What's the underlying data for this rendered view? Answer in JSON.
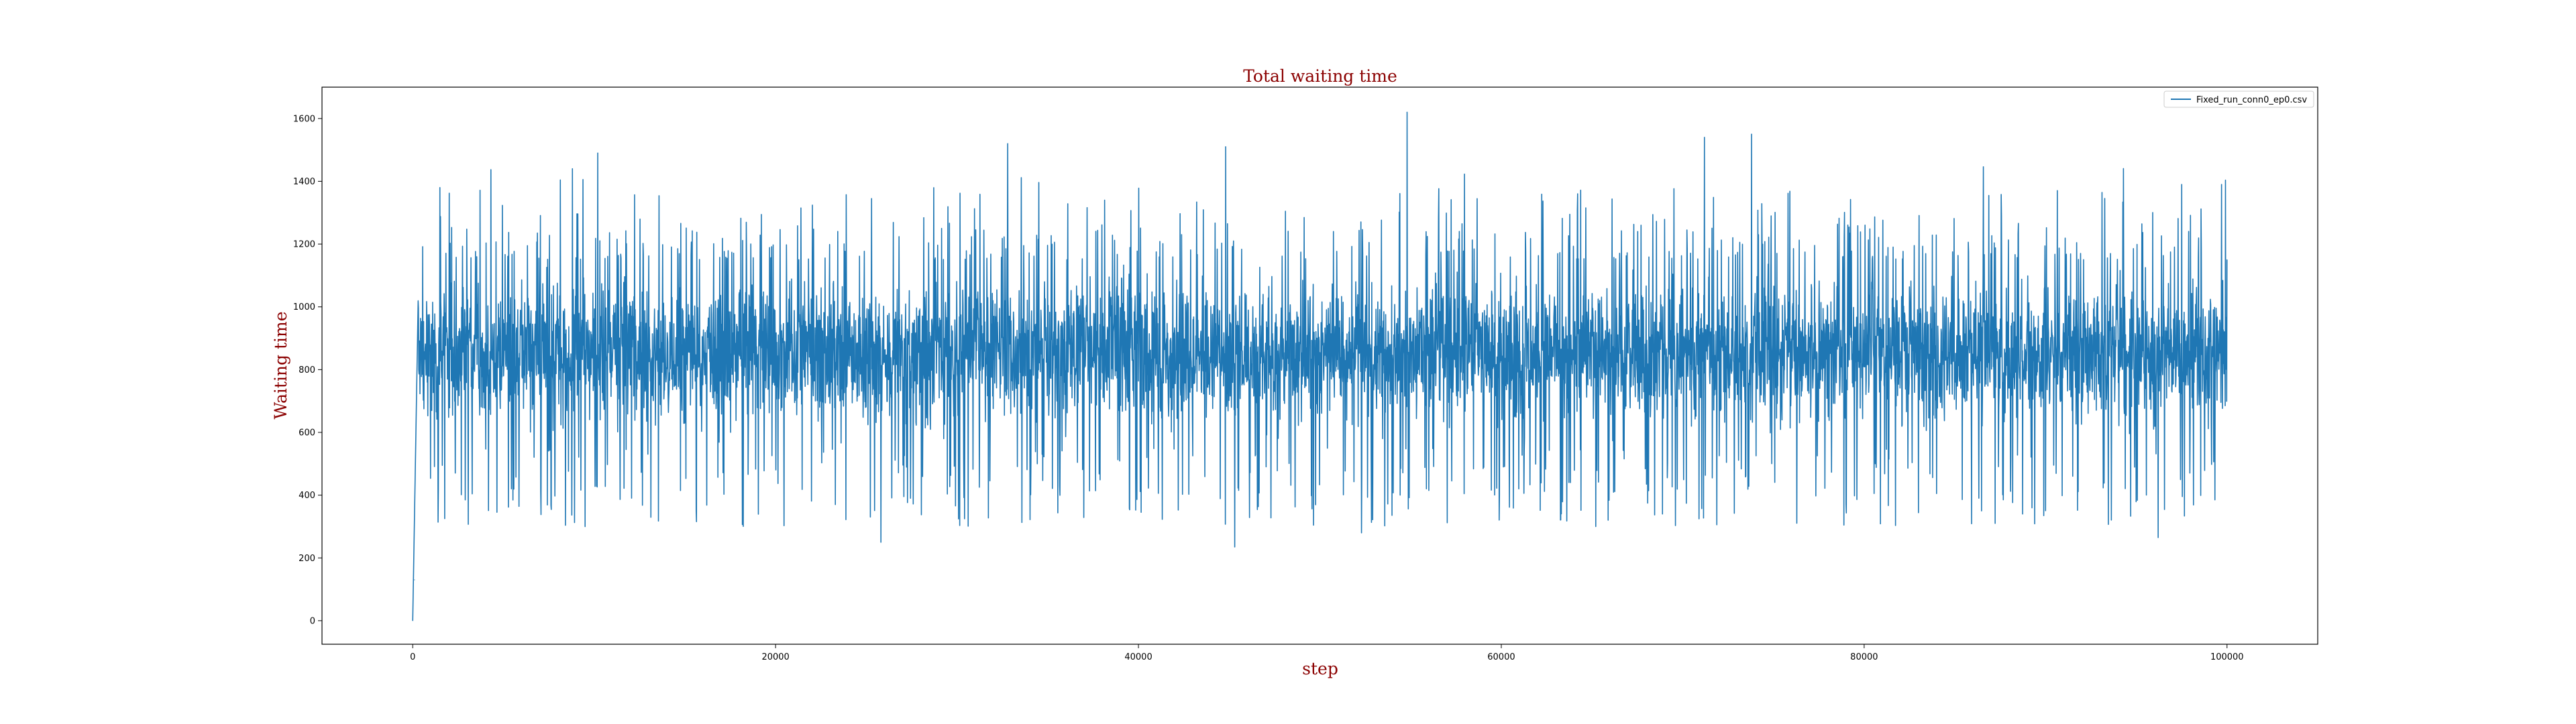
{
  "chart_data": {
    "type": "line",
    "title": "Total waiting time",
    "xlabel": "step",
    "ylabel": "Waiting time",
    "xlim": [
      -5000,
      105000
    ],
    "ylim": [
      -75,
      1700
    ],
    "x_ticks": [
      0,
      20000,
      40000,
      60000,
      80000,
      100000
    ],
    "y_ticks": [
      0,
      200,
      400,
      600,
      800,
      1000,
      1200,
      1400,
      1600
    ],
    "grid": false,
    "legend_position": "top-right",
    "colors": {
      "series": "#1f77b4",
      "title": "#8b0000",
      "labels": "#8b0000",
      "frame": "#000000"
    },
    "series": [
      {
        "name": "Fixed_run_conn0_ep0.csv",
        "x_range": [
          0,
          100000
        ],
        "typical_band": [
          550,
          1150
        ],
        "extreme_band": [
          300,
          1450
        ],
        "points": [
          {
            "x": 0,
            "y": 0
          },
          {
            "x": 100,
            "y": 130
          },
          {
            "x": 300,
            "y": 1020
          },
          {
            "x": 1500,
            "y": 1380
          },
          {
            "x": 8800,
            "y": 1440
          },
          {
            "x": 9500,
            "y": 300
          },
          {
            "x": 10200,
            "y": 1490
          },
          {
            "x": 25800,
            "y": 250
          },
          {
            "x": 32800,
            "y": 1520
          },
          {
            "x": 44800,
            "y": 1510
          },
          {
            "x": 45300,
            "y": 235
          },
          {
            "x": 52300,
            "y": 280
          },
          {
            "x": 54800,
            "y": 1620
          },
          {
            "x": 71200,
            "y": 1540
          },
          {
            "x": 73800,
            "y": 1550
          },
          {
            "x": 96200,
            "y": 265
          },
          {
            "x": 97500,
            "y": 1390
          },
          {
            "x": 99700,
            "y": 1390
          },
          {
            "x": 100000,
            "y": 1150
          }
        ]
      }
    ]
  }
}
